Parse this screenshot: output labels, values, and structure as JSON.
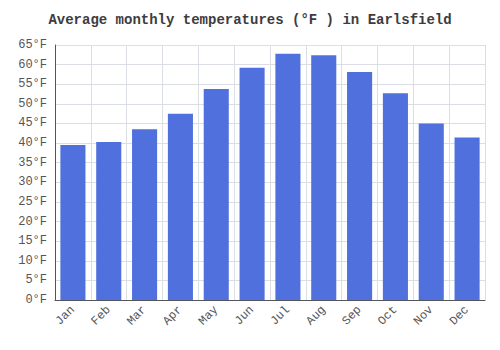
{
  "chart_data": {
    "type": "bar",
    "title": "Average monthly temperatures (°F ) in Earlsfield",
    "categories": [
      "Jan",
      "Feb",
      "Mar",
      "Apr",
      "May",
      "Jun",
      "Jul",
      "Aug",
      "Sep",
      "Oct",
      "Nov",
      "Dec"
    ],
    "values": [
      39.5,
      40.3,
      43.5,
      47.5,
      53.8,
      59.2,
      62.8,
      62.4,
      58.1,
      52.7,
      45.0,
      41.4
    ],
    "ylim": [
      0,
      65
    ],
    "yticks": [
      {
        "value": 0,
        "label": "0°F"
      },
      {
        "value": 5,
        "label": "5°F"
      },
      {
        "value": 10,
        "label": "10°F"
      },
      {
        "value": 15,
        "label": "15°F"
      },
      {
        "value": 20,
        "label": "20°F"
      },
      {
        "value": 25,
        "label": "25°F"
      },
      {
        "value": 30,
        "label": "30°F"
      },
      {
        "value": 35,
        "label": "35°F"
      },
      {
        "value": 40,
        "label": "40°F"
      },
      {
        "value": 45,
        "label": "45°F"
      },
      {
        "value": 50,
        "label": "50°F"
      },
      {
        "value": 55,
        "label": "55°F"
      },
      {
        "value": 60,
        "label": "60°F"
      },
      {
        "value": 65,
        "label": "65°F"
      }
    ],
    "grid": true
  }
}
